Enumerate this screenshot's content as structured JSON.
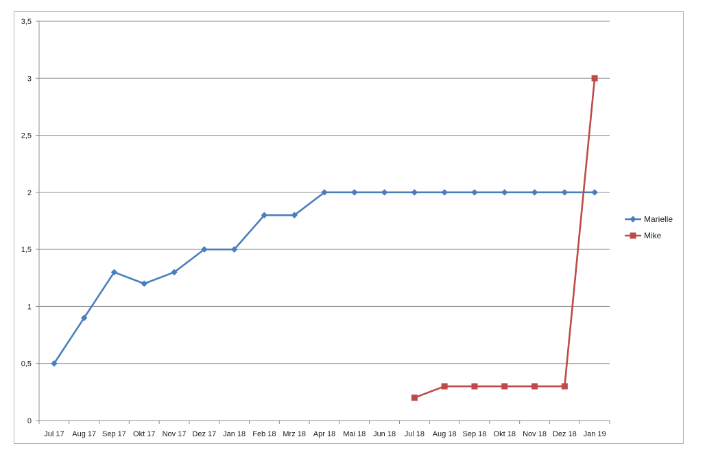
{
  "chart_data": {
    "type": "line",
    "title": "",
    "xlabel": "",
    "ylabel": "",
    "categories": [
      "Jul 17",
      "Aug 17",
      "Sep 17",
      "Okt 17",
      "Nov 17",
      "Dez 17",
      "Jan 18",
      "Feb 18",
      "Mrz 18",
      "Apr 18",
      "Mai 18",
      "Jun 18",
      "Jul 18",
      "Aug 18",
      "Sep 18",
      "Okt 18",
      "Nov 18",
      "Dez 18",
      "Jan 19"
    ],
    "ylim": [
      0,
      3.5
    ],
    "y_ticks": [
      0,
      0.5,
      1,
      1.5,
      2,
      2.5,
      3,
      3.5
    ],
    "y_tick_labels": [
      "0",
      "0,5",
      "1",
      "1,5",
      "2",
      "2,5",
      "3",
      "3,5"
    ],
    "grid": "horizontal",
    "legend_position": "right",
    "series": [
      {
        "name": "Marielle",
        "color": "#4a7ebb",
        "marker": "diamond",
        "values": [
          0.5,
          0.9,
          1.3,
          1.2,
          1.3,
          1.5,
          1.5,
          1.8,
          1.8,
          2,
          2,
          2,
          2,
          2,
          2,
          2,
          2,
          2,
          2
        ]
      },
      {
        "name": "Mike",
        "color": "#be4b48",
        "marker": "square",
        "values": [
          null,
          null,
          null,
          null,
          null,
          null,
          null,
          null,
          null,
          null,
          null,
          null,
          0.2,
          0.3,
          0.3,
          0.3,
          0.3,
          0.3,
          3
        ]
      }
    ]
  }
}
